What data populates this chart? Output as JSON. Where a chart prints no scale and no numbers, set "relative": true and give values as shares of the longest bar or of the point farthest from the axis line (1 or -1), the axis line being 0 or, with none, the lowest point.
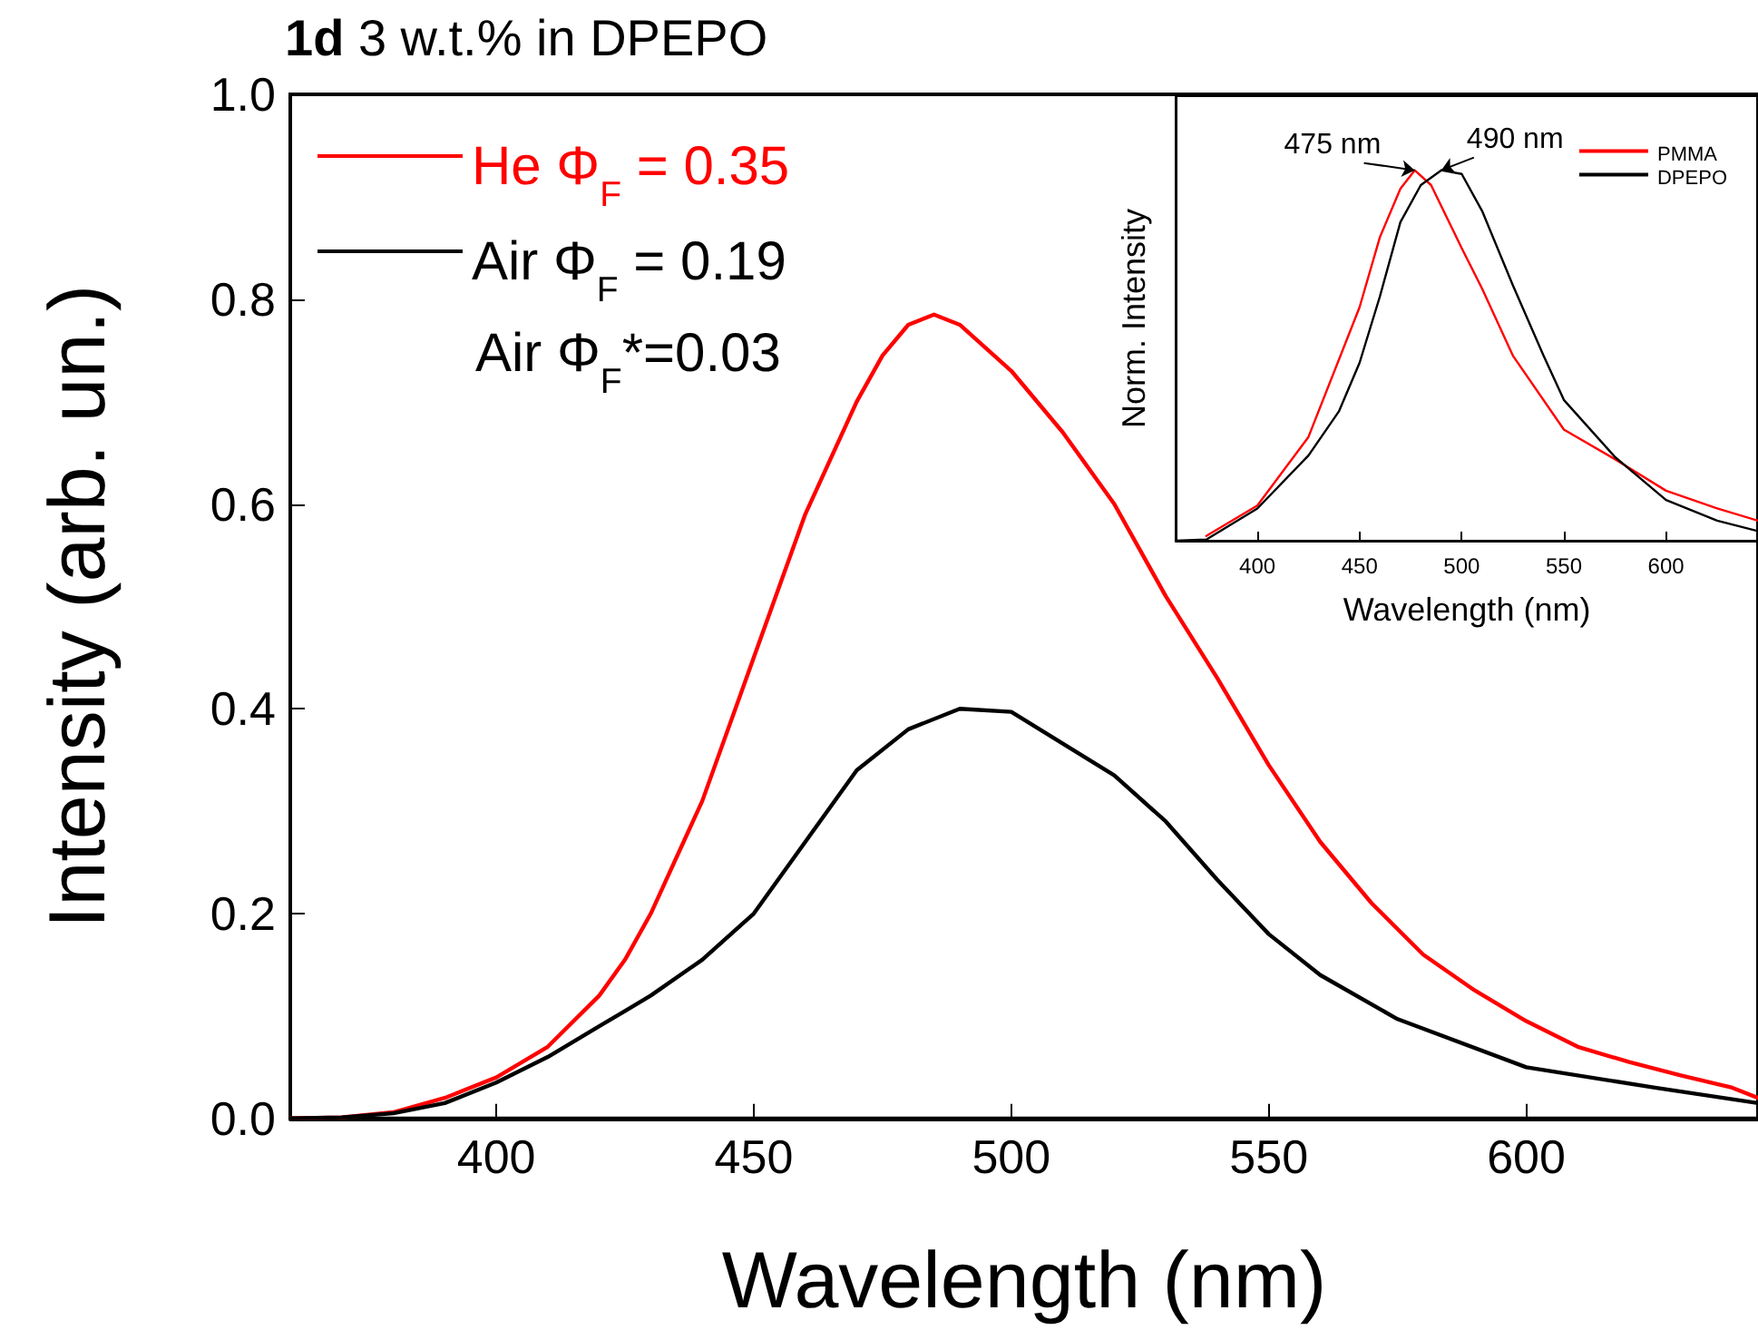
{
  "chart_data": [
    {
      "type": "line",
      "title": "1d 3 w.t.% in DPEPO",
      "xlabel": "Wavelength (nm)",
      "ylabel": "Intensity (arb. un.)",
      "xlim": [
        360,
        645
      ],
      "xticks": [
        400,
        450,
        500,
        550,
        600
      ],
      "ylim": [
        0,
        1
      ],
      "yticks": [
        {
          "value": 0,
          "label": "0.0"
        },
        {
          "value": 0.2,
          "label": "0.2"
        },
        {
          "value": 0.4,
          "label": "0.4"
        },
        {
          "value": 0.6,
          "label": "0.6"
        },
        {
          "value": 0.8,
          "label": "0.8"
        },
        {
          "value": 1,
          "label": "1.0"
        }
      ],
      "legend": "top left",
      "grid": false,
      "marker": "none",
      "line_style": "solid",
      "annotations": [
        "Air Φ$_{F}$*=0.03"
      ],
      "series": [
        {
          "name": "He Φ$_{F}$ = 0.35",
          "color": "#ff0000",
          "x": [
            360,
            370,
            380,
            390,
            400,
            410,
            420,
            425,
            430,
            440,
            450,
            460,
            470,
            475,
            480,
            485,
            490,
            500,
            510,
            520,
            530,
            540,
            550,
            560,
            570,
            580,
            590,
            600,
            610,
            620,
            630,
            640,
            645
          ],
          "values": [
            0,
            0.001,
            0.006,
            0.02,
            0.04,
            0.07,
            0.12,
            0.155,
            0.2,
            0.31,
            0.45,
            0.59,
            0.7,
            0.745,
            0.775,
            0.785,
            0.775,
            0.73,
            0.67,
            0.6,
            0.51,
            0.43,
            0.345,
            0.27,
            0.21,
            0.16,
            0.125,
            0.095,
            0.07,
            0.055,
            0.042,
            0.03,
            0.02
          ]
        },
        {
          "name": "Air Φ$_{F}$ = 0.19",
          "color": "#000000",
          "x": [
            360,
            370,
            380,
            390,
            400,
            410,
            420,
            425,
            430,
            440,
            450,
            460,
            470,
            480,
            490,
            500,
            510,
            520,
            530,
            540,
            550,
            560,
            575,
            600,
            625,
            645
          ],
          "values": [
            0,
            0.001,
            0.005,
            0.015,
            0.035,
            0.06,
            0.09,
            0.105,
            0.12,
            0.155,
            0.2,
            0.27,
            0.34,
            0.38,
            0.4,
            0.397,
            0.366,
            0.335,
            0.29,
            0.233,
            0.18,
            0.14,
            0.097,
            0.05,
            0.03,
            0.015
          ]
        }
      ]
    },
    {
      "type": "line",
      "xlabel": "Wavelength (nm)",
      "ylabel": "Norm. Intensity",
      "relative": true,
      "xlim": [
        360,
        645
      ],
      "xticks": [
        400,
        450,
        500,
        550,
        600
      ],
      "legend": "top right",
      "grid": false,
      "marker": "none",
      "line_style": "solid",
      "annotations": [
        {
          "text": "475 nm",
          "x": 477,
          "y": 1
        },
        {
          "text": "490 nm",
          "x": 490,
          "y": 1
        }
      ],
      "series": [
        {
          "name": "PMMA",
          "color": "#ff0000",
          "x": [
            375,
            400,
            425,
            450,
            460,
            470,
            477,
            485,
            500,
            510,
            525,
            550,
            575,
            600,
            625,
            645
          ],
          "values": [
            0.013,
            0.095,
            0.28,
            0.63,
            0.82,
            0.95,
            1,
            0.96,
            0.79,
            0.68,
            0.5,
            0.3,
            0.22,
            0.135,
            0.087,
            0.054
          ]
        },
        {
          "name": "DPEPO",
          "color": "#000000",
          "x": [
            360,
            375,
            400,
            425,
            440,
            450,
            460,
            470,
            480,
            490,
            500,
            510,
            525,
            540,
            550,
            575,
            600,
            625,
            645
          ],
          "values": [
            0,
            0.003,
            0.087,
            0.23,
            0.35,
            0.48,
            0.66,
            0.86,
            0.96,
            1,
            0.99,
            0.89,
            0.69,
            0.5,
            0.38,
            0.226,
            0.11,
            0.054,
            0.026
          ]
        }
      ]
    }
  ]
}
